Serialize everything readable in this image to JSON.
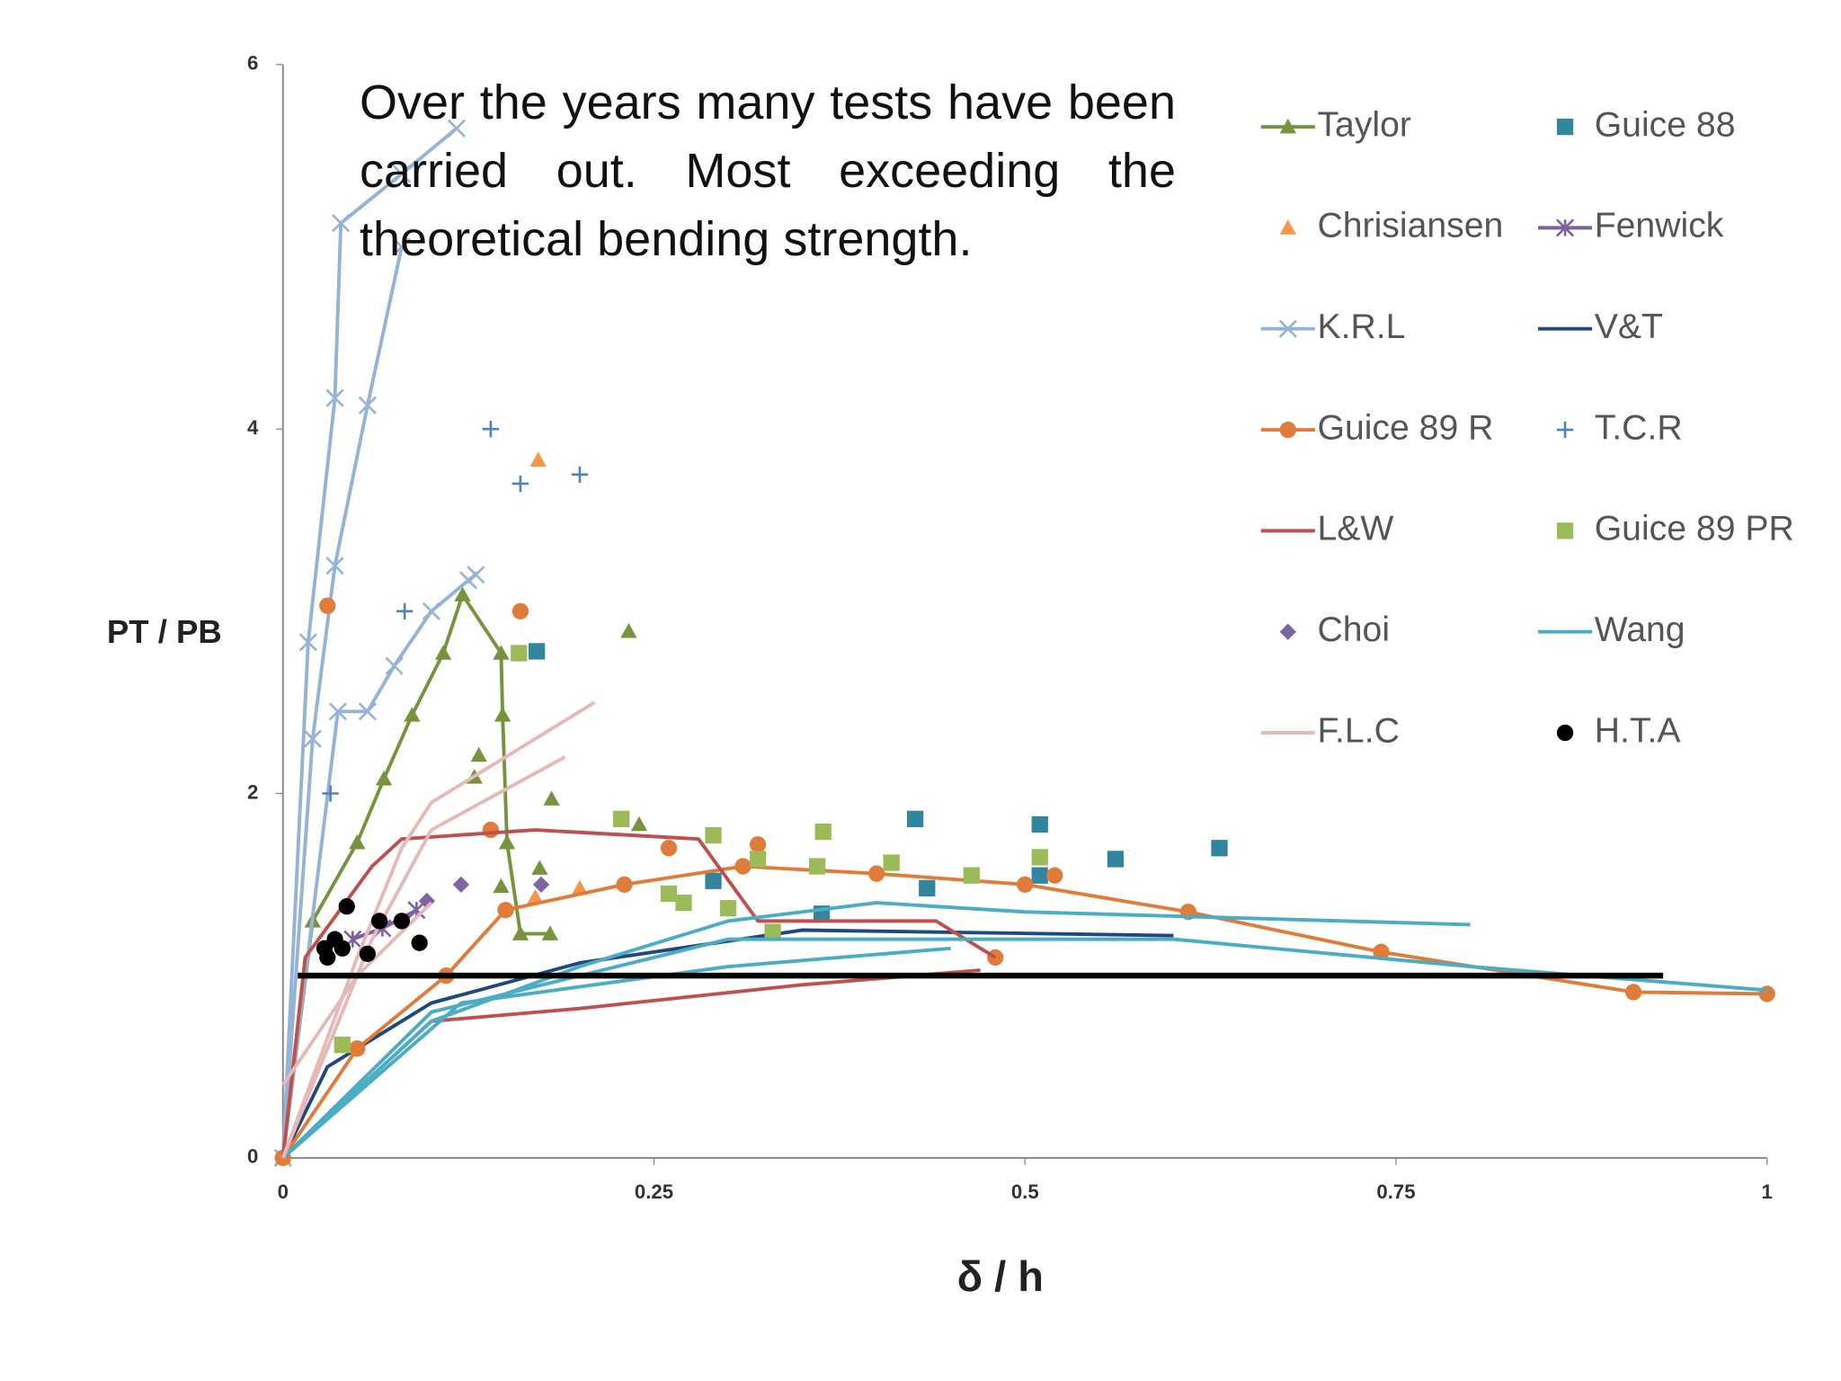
{
  "chart_data": {
    "type": "scatter",
    "annotation": "Over the years many tests have been carried out. Most exceeding the theoretical bending strength.",
    "xlabel": "δ / h",
    "ylabel": "PT / PB",
    "xlim": [
      0,
      1
    ],
    "ylim": [
      0,
      6
    ],
    "xticks": [
      0,
      0.25,
      0.5,
      0.75,
      1
    ],
    "yticks": [
      0,
      2,
      4,
      6
    ],
    "grid": false,
    "legend": "right",
    "reference_line": {
      "y": 1,
      "x": [
        0.01,
        0.93
      ],
      "color": "#000000"
    },
    "series": [
      {
        "name": "Taylor",
        "color": "#77933c",
        "line": true,
        "marker": "triangle",
        "x": [
          0,
          0.02,
          0.05,
          0.068,
          0.087,
          0.108,
          0.121,
          0.147,
          0.148,
          0.151,
          0.16,
          0.18,
          null,
          0.132,
          null,
          0.129,
          null,
          0.181,
          null,
          0.24,
          null,
          0.233,
          null,
          0.173,
          null,
          0.147
        ],
        "values": [
          0,
          1.3,
          1.73,
          2.08,
          2.43,
          2.77,
          3.09,
          2.77,
          2.43,
          1.73,
          1.23,
          1.23,
          null,
          2.21,
          null,
          2.09,
          null,
          1.97,
          null,
          1.83,
          null,
          2.89,
          null,
          1.59,
          null,
          1.49
        ]
      },
      {
        "name": "Guice 88",
        "color": "#31859c",
        "line": false,
        "marker": "square",
        "x": [
          0.171,
          0.426,
          0.51,
          0.561,
          0.631,
          0.51,
          0.363,
          0.434,
          0.29
        ],
        "values": [
          2.78,
          1.86,
          1.83,
          1.64,
          1.7,
          1.55,
          1.34,
          1.48,
          1.52
        ]
      },
      {
        "name": "Chrisiansen",
        "color": "#f79646",
        "line": false,
        "marker": "triangle",
        "x": [
          0.172,
          0.2,
          0.17
        ],
        "values": [
          3.83,
          1.48,
          1.43
        ]
      },
      {
        "name": "Fenwick",
        "color": "#7f5f9f",
        "line": true,
        "marker": "star",
        "x": [
          0.047,
          0.067,
          0.09
        ],
        "values": [
          1.2,
          1.26,
          1.36
        ]
      },
      {
        "name": "K.R.L",
        "color": "#95b3d7",
        "line": true,
        "marker": "x",
        "x": [
          0,
          0.017,
          0.035,
          0.039,
          0.08,
          0.117,
          null,
          0,
          0.02,
          0.035,
          0.057,
          0.08,
          null,
          0,
          0.037,
          0.057,
          0.075,
          0.1,
          0.125,
          0.13
        ],
        "values": [
          0,
          2.83,
          4.17,
          5.13,
          5.4,
          5.65,
          null,
          0,
          2.3,
          3.25,
          4.13,
          5.0,
          null,
          0,
          2.45,
          2.45,
          2.7,
          3.0,
          3.17,
          3.2
        ]
      },
      {
        "name": "V&T",
        "color": "#1f497d",
        "line": true,
        "marker": "none",
        "x": [
          0,
          0.03,
          0.1,
          0.2,
          0.35,
          0.6
        ],
        "values": [
          0,
          0.5,
          0.85,
          1.07,
          1.25,
          1.22
        ]
      },
      {
        "name": "Guice 89 R",
        "color": "#e07b39",
        "line": true,
        "marker": "circle",
        "x": [
          0,
          0.05,
          0.11,
          0.15,
          0.23,
          0.31,
          0.4,
          0.5,
          0.61,
          0.74,
          0.91,
          1.0,
          null,
          0.03,
          null,
          0.16,
          null,
          0.14,
          null,
          0.26,
          null,
          0.32,
          null,
          0.52,
          null,
          0.48
        ],
        "values": [
          0,
          0.6,
          1.0,
          1.36,
          1.5,
          1.6,
          1.56,
          1.5,
          1.35,
          1.13,
          0.91,
          0.9,
          null,
          3.03,
          null,
          3.0,
          null,
          1.8,
          null,
          1.7,
          null,
          1.72,
          null,
          1.55,
          null,
          1.1
        ]
      },
      {
        "name": "T.C.R",
        "color": "#4f81bd",
        "line": false,
        "marker": "plus",
        "x": [
          0.14,
          0.16,
          0.2,
          0.082,
          0.032
        ],
        "values": [
          4.0,
          3.7,
          3.75,
          3.0,
          2.0
        ]
      },
      {
        "name": "L&W",
        "color": "#c0504d",
        "line": true,
        "marker": "none",
        "x": [
          0,
          0.015,
          0.06,
          0.08,
          0.17,
          0.28,
          0.32,
          0.44,
          0.48,
          null,
          0,
          0.1,
          0.2,
          0.35,
          0.47
        ],
        "values": [
          0,
          1.1,
          1.6,
          1.75,
          1.8,
          1.75,
          1.3,
          1.3,
          1.1,
          null,
          0,
          0.75,
          0.82,
          0.95,
          1.03
        ]
      },
      {
        "name": "Guice 89 PR",
        "color": "#9bbb59",
        "line": false,
        "marker": "square",
        "x": [
          0.04,
          0.159,
          0.228,
          0.26,
          0.27,
          0.29,
          0.3,
          0.32,
          0.33,
          0.36,
          0.364,
          0.41,
          0.464,
          0.51
        ],
        "values": [
          0.62,
          2.77,
          1.86,
          1.45,
          1.4,
          1.77,
          1.37,
          1.64,
          1.24,
          1.6,
          1.79,
          1.62,
          1.55,
          1.65
        ]
      },
      {
        "name": "Choi",
        "color": "#8064a2",
        "line": false,
        "marker": "diamond",
        "x": [
          0.097,
          0.12,
          0.174
        ],
        "values": [
          1.41,
          1.5,
          1.5
        ]
      },
      {
        "name": "Wang",
        "color": "#4bacc6",
        "line": true,
        "marker": "none",
        "x": [
          0,
          0.1,
          0.2,
          0.3,
          0.4,
          0.5,
          0.8,
          null,
          0,
          0.1,
          0.3,
          0.6,
          0.8,
          1.0,
          null,
          0,
          0.12,
          0.3,
          0.45
        ],
        "values": [
          0,
          0.75,
          1.05,
          1.3,
          1.4,
          1.35,
          1.28,
          null,
          0,
          0.8,
          1.2,
          1.2,
          1.05,
          0.92,
          null,
          0,
          0.85,
          1.05,
          1.15
        ]
      },
      {
        "name": "F.L.C",
        "color": "#e6b9b8",
        "line": true,
        "marker": "none",
        "x": [
          0,
          0.05,
          0.08,
          0.1,
          0.21,
          null,
          0,
          0.06,
          0.1,
          0.19,
          null,
          0,
          0.05,
          0.1
        ],
        "values": [
          0,
          1.1,
          1.7,
          1.95,
          2.5,
          null,
          0,
          1.2,
          1.8,
          2.2,
          null,
          0.4,
          1.0,
          1.4
        ]
      },
      {
        "name": "H.T.A",
        "color": "#000000",
        "line": false,
        "marker": "circle",
        "x": [
          0.03,
          0.035,
          0.04,
          0.043,
          0.057,
          0.065,
          0.08,
          0.092,
          0.028
        ],
        "values": [
          1.1,
          1.2,
          1.15,
          1.38,
          1.12,
          1.3,
          1.3,
          1.18,
          1.15
        ]
      }
    ]
  }
}
